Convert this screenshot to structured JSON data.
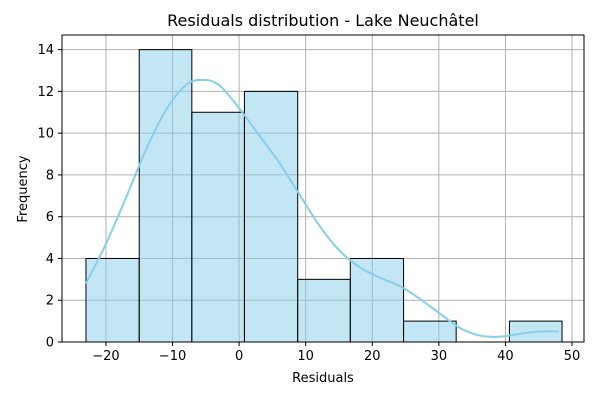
{
  "chart_data": {
    "type": "bar",
    "title": "Residuals distribution - Lake Neuchâtel",
    "xlabel": "Residuals",
    "ylabel": "Frequency",
    "xlim": [
      -26.6,
      51.8
    ],
    "ylim": [
      0,
      14.7
    ],
    "xticks": [
      -20,
      -10,
      0,
      10,
      20,
      30,
      40,
      50
    ],
    "xtick_labels": [
      "−20",
      "−10",
      "0",
      "10",
      "20",
      "30",
      "40",
      "50"
    ],
    "yticks": [
      0,
      2,
      4,
      6,
      8,
      10,
      12,
      14
    ],
    "ytick_labels": [
      "0",
      "2",
      "4",
      "6",
      "8",
      "10",
      "12",
      "14"
    ],
    "grid": true,
    "bins": [
      {
        "x0": -23.0,
        "x1": -15.0,
        "count": 4
      },
      {
        "x0": -15.0,
        "x1": -7.1,
        "count": 14
      },
      {
        "x0": -7.1,
        "x1": 0.8,
        "count": 11
      },
      {
        "x0": 0.8,
        "x1": 8.8,
        "count": 12
      },
      {
        "x0": 8.8,
        "x1": 16.7,
        "count": 3
      },
      {
        "x0": 16.7,
        "x1": 24.7,
        "count": 4
      },
      {
        "x0": 24.7,
        "x1": 32.6,
        "count": 1
      },
      {
        "x0": 32.6,
        "x1": 40.6,
        "count": 0
      },
      {
        "x0": 40.6,
        "x1": 48.5,
        "count": 1
      }
    ],
    "kde": {
      "x": [
        -23,
        -20,
        -17,
        -14,
        -11,
        -8,
        -5.5,
        -3,
        0,
        3,
        6,
        9,
        12,
        15,
        18,
        21,
        24,
        27,
        30,
        33,
        36,
        39,
        42,
        45,
        48
      ],
      "y": [
        2.8,
        4.7,
        6.9,
        9.2,
        11.1,
        12.3,
        12.55,
        12.3,
        11.2,
        9.9,
        8.6,
        7.1,
        5.6,
        4.4,
        3.6,
        3.1,
        2.7,
        2.1,
        1.4,
        0.7,
        0.32,
        0.25,
        0.38,
        0.5,
        0.5
      ],
      "color": "#87ceeb"
    },
    "bar_color": "#87ceeb"
  }
}
